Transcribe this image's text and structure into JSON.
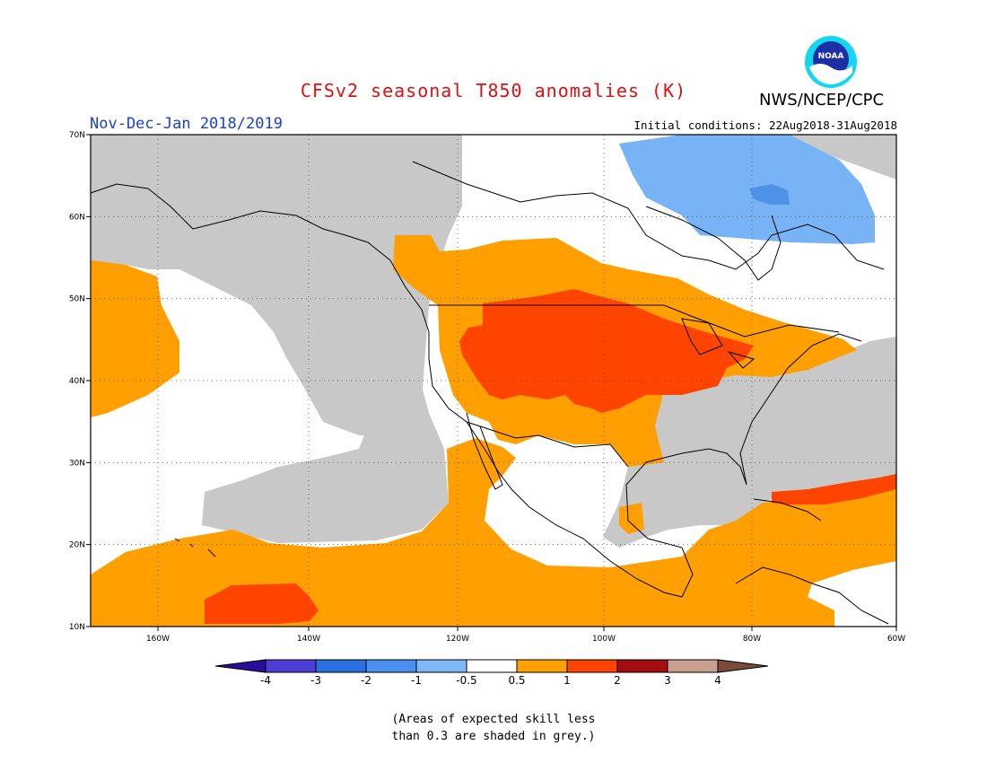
{
  "header": {
    "title": "CFSv2 seasonal T850 anomalies (K)",
    "agency": "NWS/NCEP/CPC",
    "logo_text": "NOAA",
    "period": "Nov-Dec-Jan 2018/2019",
    "initial_conditions": "Initial conditions: 22Aug2018-31Aug2018"
  },
  "map": {
    "lat_labels": [
      "70N",
      "60N",
      "50N",
      "40N",
      "30N",
      "20N",
      "10N"
    ],
    "lon_labels": [
      "160W",
      "140W",
      "120W",
      "100W",
      "80W",
      "60W"
    ],
    "grid": true,
    "colors": {
      "ocean_white": "#ffffff",
      "grey_low_skill": "#c8c8c8",
      "orange": "#ff9f00",
      "red_orange": "#ff4400",
      "light_blue": "#78b4f5",
      "blue": "#4f93e8",
      "coast": "#000000"
    }
  },
  "colorbar": {
    "ticks": [
      "-4",
      "-3",
      "-2",
      "-1",
      "-0.5",
      "0.5",
      "1",
      "2",
      "3",
      "4"
    ],
    "colors": [
      "#2a0d9c",
      "#4d3fd6",
      "#2a6fe0",
      "#4a90f0",
      "#7fb9f7",
      "#ffffff",
      "#ff9f00",
      "#ff4400",
      "#a30e0e",
      "#c9a090",
      "#7a4a3a"
    ]
  },
  "caption": {
    "line1": "(Areas of expected skill less",
    "line2": "than 0.3 are shaded in grey.)"
  }
}
